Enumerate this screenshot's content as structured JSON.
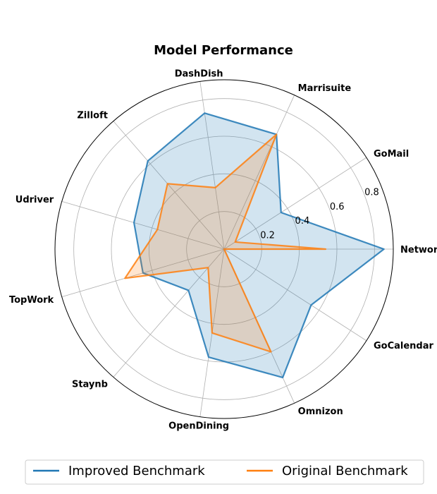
{
  "chart_data": {
    "type": "radar",
    "title": "Model Performance",
    "categories": [
      "NetworkIn",
      "GoMail",
      "Marrisuite",
      "DashDish",
      "Zilloft",
      "Udriver",
      "TopWork",
      "Staynb",
      "OpenDining",
      "Omnizon",
      "GoCalendar"
    ],
    "rlim": [
      0,
      0.9
    ],
    "r_ticks": [
      0.2,
      0.4,
      0.6,
      0.8
    ],
    "r_tick_labels": [
      "0.2",
      "0.4",
      "0.6",
      "0.8"
    ],
    "grid": true,
    "legend_position": "bottom",
    "series": [
      {
        "name": "Improved Benchmark",
        "color": "#1f77b4",
        "values": [
          0.85,
          0.36,
          0.67,
          0.73,
          0.62,
          0.5,
          0.45,
          0.29,
          0.58,
          0.75,
          0.55
        ]
      },
      {
        "name": "Original Benchmark",
        "color": "#ff7f0e",
        "values": [
          0.54,
          0.07,
          0.67,
          0.33,
          0.46,
          0.37,
          0.55,
          0.13,
          0.45,
          0.6,
          0.0
        ]
      }
    ]
  }
}
